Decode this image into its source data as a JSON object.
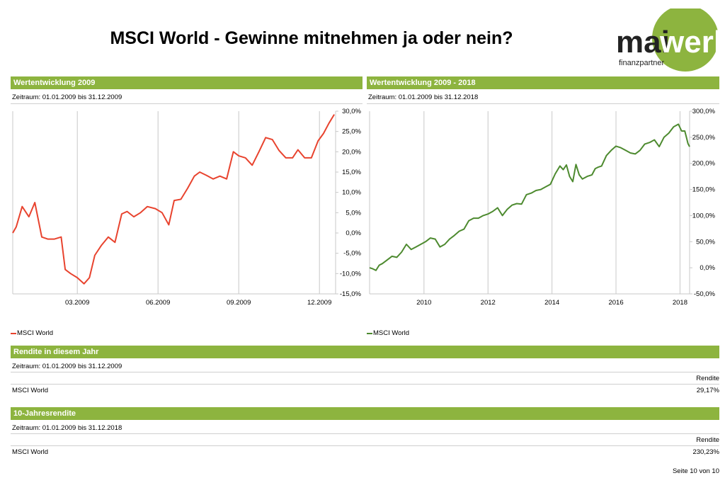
{
  "header": {
    "title": "MSCI World - Gewinne mitnehmen ja oder nein?",
    "logo_word_left": "mai",
    "logo_word_right": "werk",
    "logo_sub": "finanzpartner",
    "logo_color": "#8db43f"
  },
  "panel_left": {
    "heading": "Wertentwicklung 2009",
    "period": "Zeitraum: 01.01.2009 bis 31.12.2009",
    "legend": "MSCI World"
  },
  "panel_right": {
    "heading": "Wertentwicklung 2009 - 2018",
    "period": "Zeitraum: 01.01.2009 bis 31.12.2018",
    "legend": "MSCI World"
  },
  "section_year": {
    "heading": "Rendite in diesem Jahr",
    "period": "Zeitraum: 01.01.2009 bis 31.12.2009",
    "col_header": "Rendite",
    "row_label": "MSCI World",
    "row_value": "29,17%"
  },
  "section_10y": {
    "heading": "10-Jahresrendite",
    "period": "Zeitraum: 01.01.2009 bis 31.12.2018",
    "col_header": "Rendite",
    "row_label": "MSCI World",
    "row_value": "230,23%"
  },
  "footer": {
    "page": "Seite 10 von 10"
  },
  "chart_data": [
    {
      "type": "line",
      "color": "#e8432e",
      "x_ticks": [
        "03.2009",
        "06.2009",
        "09.2009",
        "12.2009"
      ],
      "x_tick_positions": [
        2.4,
        5.4,
        8.4,
        11.4
      ],
      "xlim": [
        0,
        12
      ],
      "ylim": [
        -15,
        30
      ],
      "y_ticks": [
        30,
        25,
        20,
        15,
        10,
        5,
        0,
        -5,
        -10,
        -15
      ],
      "y_tick_labels": [
        "30,0%",
        "25,0%",
        "20,0%",
        "15,0%",
        "10,0%",
        "5,0%",
        "0,0%",
        "-5,0%",
        "-10,0%",
        "-15,0%"
      ],
      "series": [
        {
          "name": "MSCI World",
          "x": [
            0,
            0.13,
            0.35,
            0.6,
            0.82,
            1.08,
            1.3,
            1.55,
            1.8,
            1.95,
            2.15,
            2.4,
            2.65,
            2.85,
            3.05,
            3.3,
            3.55,
            3.8,
            4.05,
            4.25,
            4.5,
            4.75,
            5.0,
            5.3,
            5.55,
            5.8,
            6.0,
            6.25,
            6.5,
            6.75,
            6.95,
            7.2,
            7.45,
            7.7,
            7.95,
            8.2,
            8.4,
            8.65,
            8.9,
            9.15,
            9.4,
            9.65,
            9.9,
            10.15,
            10.4,
            10.6,
            10.85,
            11.1,
            11.35,
            11.55,
            11.75,
            11.95
          ],
          "y": [
            0,
            1.5,
            6.5,
            4,
            7.5,
            -1,
            -1.5,
            -1.5,
            -1,
            -9,
            -10,
            -11,
            -12.5,
            -11,
            -5.5,
            -3,
            -1,
            -2.3,
            4.7,
            5.3,
            4,
            5,
            6.5,
            6,
            5,
            2,
            8,
            8.3,
            11,
            14,
            15,
            14.2,
            13.3,
            14,
            13.3,
            20,
            19,
            18.5,
            16.7,
            20,
            23.5,
            23,
            20.3,
            18.5,
            18.5,
            20.5,
            18.5,
            18.5,
            22.7,
            24.5,
            27,
            29.2
          ]
        }
      ]
    },
    {
      "type": "line",
      "color": "#4d8a2f",
      "x_ticks": [
        "2010",
        "2012",
        "2014",
        "2016",
        "2018"
      ],
      "x_tick_positions": [
        2010,
        2012,
        2014,
        2016,
        2018
      ],
      "xlim": [
        2008.3,
        2018.3
      ],
      "ylim": [
        -50,
        300
      ],
      "y_ticks": [
        300,
        250,
        200,
        150,
        100,
        50,
        0,
        -50
      ],
      "y_tick_labels": [
        "300,0%",
        "250,0%",
        "200,0%",
        "150,0%",
        "100,0%",
        "50,0%",
        "0,0%",
        "-50,0%"
      ],
      "series": [
        {
          "name": "MSCI World",
          "x": [
            2008.3,
            2008.4,
            2008.5,
            2008.6,
            2008.7,
            2008.85,
            2009.0,
            2009.15,
            2009.3,
            2009.45,
            2009.6,
            2009.75,
            2009.9,
            2010.05,
            2010.2,
            2010.35,
            2010.5,
            2010.65,
            2010.8,
            2010.95,
            2011.1,
            2011.25,
            2011.4,
            2011.55,
            2011.7,
            2011.85,
            2012.0,
            2012.15,
            2012.3,
            2012.45,
            2012.6,
            2012.75,
            2012.9,
            2013.05,
            2013.2,
            2013.35,
            2013.5,
            2013.65,
            2013.8,
            2013.95,
            2014.1,
            2014.25,
            2014.35,
            2014.45,
            2014.55,
            2014.65,
            2014.75,
            2014.85,
            2014.95,
            2015.1,
            2015.25,
            2015.35,
            2015.45,
            2015.55,
            2015.7,
            2015.85,
            2016.0,
            2016.15,
            2016.3,
            2016.45,
            2016.6,
            2016.75,
            2016.9,
            2017.05,
            2017.2,
            2017.35,
            2017.5,
            2017.65,
            2017.8,
            2017.95,
            2018.05,
            2018.15,
            2018.2,
            2018.25,
            2018.3
          ],
          "y": [
            0,
            -2,
            -5,
            5,
            8,
            15,
            22,
            20,
            30,
            45,
            35,
            40,
            45,
            50,
            57,
            55,
            40,
            45,
            55,
            62,
            70,
            74,
            90,
            95,
            95,
            100,
            103,
            108,
            115,
            100,
            112,
            120,
            123,
            122,
            140,
            143,
            148,
            150,
            155,
            160,
            180,
            195,
            188,
            197,
            175,
            165,
            198,
            178,
            170,
            175,
            178,
            190,
            193,
            195,
            215,
            225,
            233,
            230,
            225,
            220,
            218,
            225,
            237,
            240,
            245,
            232,
            250,
            258,
            270,
            275,
            262,
            262,
            250,
            238,
            232
          ]
        }
      ]
    }
  ]
}
